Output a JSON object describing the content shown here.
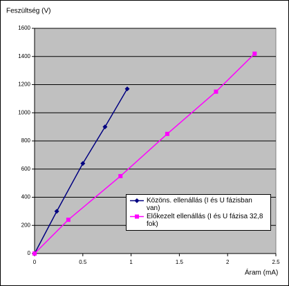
{
  "chart_data": {
    "type": "line",
    "y_label": "Feszültség (V)",
    "x_label": "Áram (mA)",
    "xlim": [
      0,
      2.5
    ],
    "xticks": [
      0,
      0.5,
      1,
      1.5,
      2,
      2.5
    ],
    "ylim": [
      0,
      1600
    ],
    "yticks": [
      0,
      200,
      400,
      600,
      800,
      1000,
      1200,
      1400,
      1600
    ],
    "grid": true,
    "series": [
      {
        "name": "Közöns. ellenállás (I és U fázisban van)",
        "color": "#000080",
        "marker": "diamond",
        "x": [
          0,
          0.23,
          0.5,
          0.73,
          0.96
        ],
        "values": [
          0,
          300,
          640,
          900,
          1170
        ]
      },
      {
        "name": "Előkezelt ellenállás (I és U fázisa 32,8 fok)",
        "color": "#ff00ff",
        "marker": "square",
        "x": [
          0,
          0.35,
          0.89,
          1.375,
          1.88,
          2.28
        ],
        "values": [
          0,
          240,
          550,
          850,
          1150,
          1420
        ]
      }
    ]
  }
}
